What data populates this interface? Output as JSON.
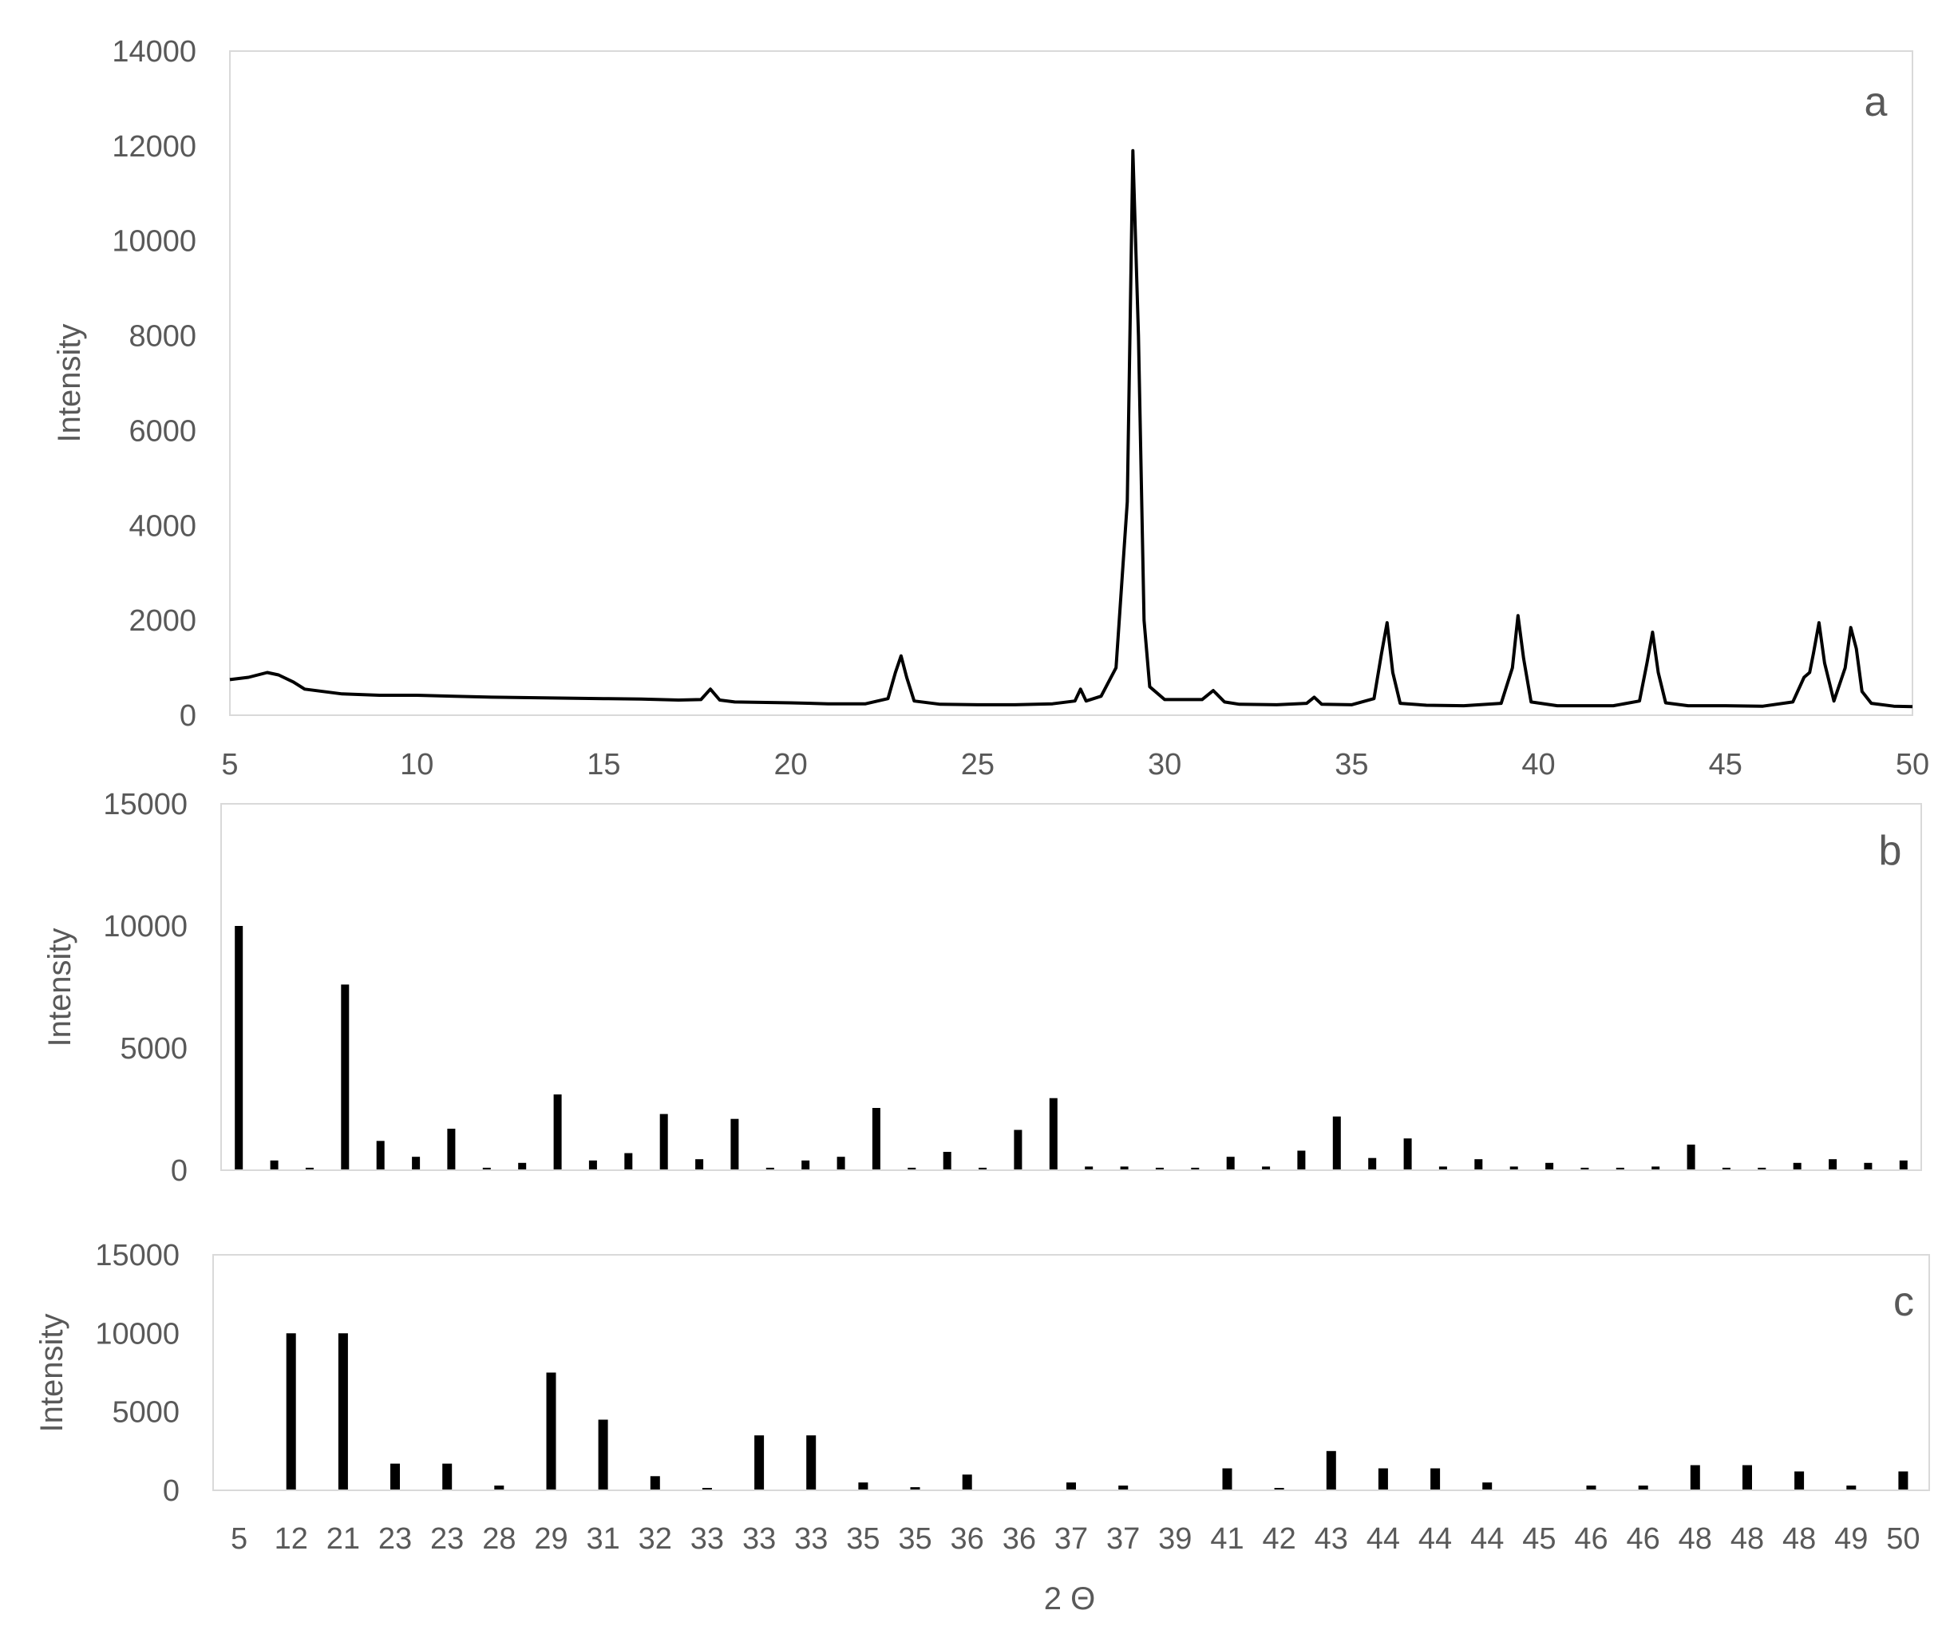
{
  "chart_data": [
    {
      "type": "line",
      "panel_label": "a",
      "ylabel": "Intensity",
      "xlim": [
        5,
        50
      ],
      "ylim": [
        0,
        14000
      ],
      "x_ticks": [
        5,
        10,
        15,
        20,
        25,
        30,
        35,
        40,
        45,
        50
      ],
      "x_tick_labels": [
        "5",
        "10",
        "15",
        "20",
        "25",
        "30",
        "35",
        "40",
        "45",
        "50"
      ],
      "y_ticks": [
        0,
        2000,
        4000,
        6000,
        8000,
        10000,
        12000,
        14000
      ],
      "y_tick_labels": [
        "0",
        "2000",
        "4000",
        "6000",
        "8000",
        "10000",
        "12000",
        "14000"
      ],
      "grid": false,
      "line_color": "#000000",
      "series": [
        {
          "x": [
            5.0,
            5.5,
            6.0,
            6.3,
            6.7,
            7.0,
            8.0,
            9.0,
            10.0,
            11.0,
            12.0,
            13.0,
            14.0,
            15.0,
            16.0,
            17.0,
            17.6,
            17.85,
            18.1,
            18.5,
            20.0,
            21.0,
            22.0,
            22.6,
            22.8,
            22.95,
            23.1,
            23.3,
            24.0,
            25.0,
            26.0,
            27.0,
            27.6,
            27.75,
            27.9,
            28.3,
            28.7,
            29.0,
            29.15,
            29.3,
            29.45,
            29.6,
            30.0,
            31.0,
            31.3,
            31.6,
            32.0,
            33.0,
            33.8,
            34.0,
            34.2,
            35.0,
            35.6,
            35.8,
            35.95,
            36.1,
            36.3,
            37.0,
            38.0,
            39.0,
            39.3,
            39.45,
            39.6,
            39.8,
            40.5,
            41.0,
            42.0,
            42.7,
            42.9,
            43.05,
            43.2,
            43.4,
            44.0,
            45.0,
            46.0,
            46.8,
            47.1,
            47.25,
            47.35,
            47.5,
            47.65,
            47.9,
            48.2,
            48.35,
            48.5,
            48.65,
            48.9,
            49.5,
            50.0
          ],
          "y": [
            750,
            800,
            900,
            850,
            700,
            550,
            450,
            420,
            420,
            400,
            380,
            370,
            360,
            350,
            340,
            320,
            330,
            550,
            320,
            280,
            260,
            240,
            240,
            350,
            900,
            1250,
            800,
            300,
            230,
            220,
            220,
            240,
            300,
            550,
            300,
            400,
            1000,
            4500,
            11900,
            8000,
            2000,
            600,
            330,
            330,
            520,
            280,
            230,
            220,
            250,
            380,
            230,
            220,
            350,
            1300,
            1950,
            900,
            250,
            210,
            200,
            250,
            1000,
            2100,
            1200,
            280,
            200,
            200,
            200,
            300,
            1100,
            1750,
            900,
            260,
            200,
            200,
            190,
            280,
            800,
            900,
            1300,
            1950,
            1100,
            300,
            1000,
            1850,
            1400,
            500,
            250,
            190,
            180
          ]
        }
      ]
    },
    {
      "type": "bar",
      "panel_label": "b",
      "ylabel": "Intensity",
      "ylim": [
        0,
        15000
      ],
      "y_ticks": [
        0,
        5000,
        10000,
        15000
      ],
      "y_tick_labels": [
        "0",
        "5000",
        "10000",
        "15000"
      ],
      "grid": false,
      "bar_color": "#000000",
      "values": [
        10000,
        400,
        100,
        7600,
        1200,
        550,
        1700,
        100,
        300,
        3100,
        400,
        700,
        2300,
        450,
        2100,
        100,
        400,
        550,
        2550,
        100,
        750,
        100,
        1650,
        2950,
        150,
        150,
        100,
        100,
        550,
        150,
        800,
        2200,
        500,
        1300,
        150,
        450,
        150,
        300,
        100,
        100,
        150,
        1050,
        100,
        100,
        300,
        450,
        300,
        400
      ]
    },
    {
      "type": "bar",
      "panel_label": "c",
      "ylabel": "Intensity",
      "xlabel": "2 Θ",
      "ylim": [
        0,
        15000
      ],
      "y_ticks": [
        0,
        5000,
        10000,
        15000
      ],
      "y_tick_labels": [
        "0",
        "5000",
        "10000",
        "15000"
      ],
      "grid": false,
      "bar_color": "#000000",
      "categories": [
        "5",
        "12",
        "21",
        "23",
        "23",
        "28",
        "29",
        "31",
        "32",
        "33",
        "33",
        "33",
        "35",
        "35",
        "36",
        "36",
        "37",
        "37",
        "39",
        "41",
        "42",
        "43",
        "44",
        "44",
        "44",
        "45",
        "46",
        "46",
        "48",
        "48",
        "48",
        "49",
        "50"
      ],
      "values": [
        0,
        10000,
        10000,
        1700,
        1700,
        300,
        7500,
        4500,
        900,
        150,
        3500,
        3500,
        500,
        200,
        1000,
        0,
        500,
        300,
        0,
        1400,
        150,
        2500,
        1400,
        1400,
        500,
        0,
        300,
        300,
        1600,
        1600,
        1200,
        300,
        1200
      ]
    }
  ]
}
